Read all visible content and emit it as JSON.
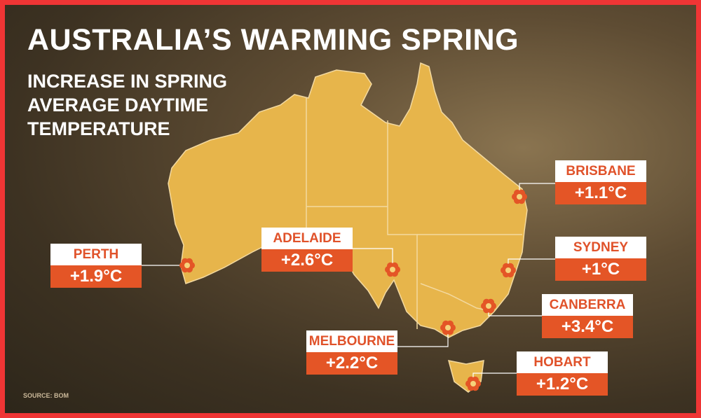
{
  "header": {
    "title": "AUSTRALIA’S WARMING SPRING",
    "subtitle_lines": [
      "INCREASE IN SPRING",
      "AVERAGE DAYTIME",
      "TEMPERATURE"
    ]
  },
  "cities": [
    {
      "name": "BRISBANE",
      "value": "+1.1°C"
    },
    {
      "name": "ADELAIDE",
      "value": "+2.6°C"
    },
    {
      "name": "PERTH",
      "value": "+1.9°C"
    },
    {
      "name": "SYDNEY",
      "value": "+1°C"
    },
    {
      "name": "CANBERRA",
      "value": "+3.4°C"
    },
    {
      "name": "MELBOURNE",
      "value": "+2.2°C"
    },
    {
      "name": "HOBART",
      "value": "+1.2°C"
    }
  ],
  "source": "SOURCE: BOM"
}
